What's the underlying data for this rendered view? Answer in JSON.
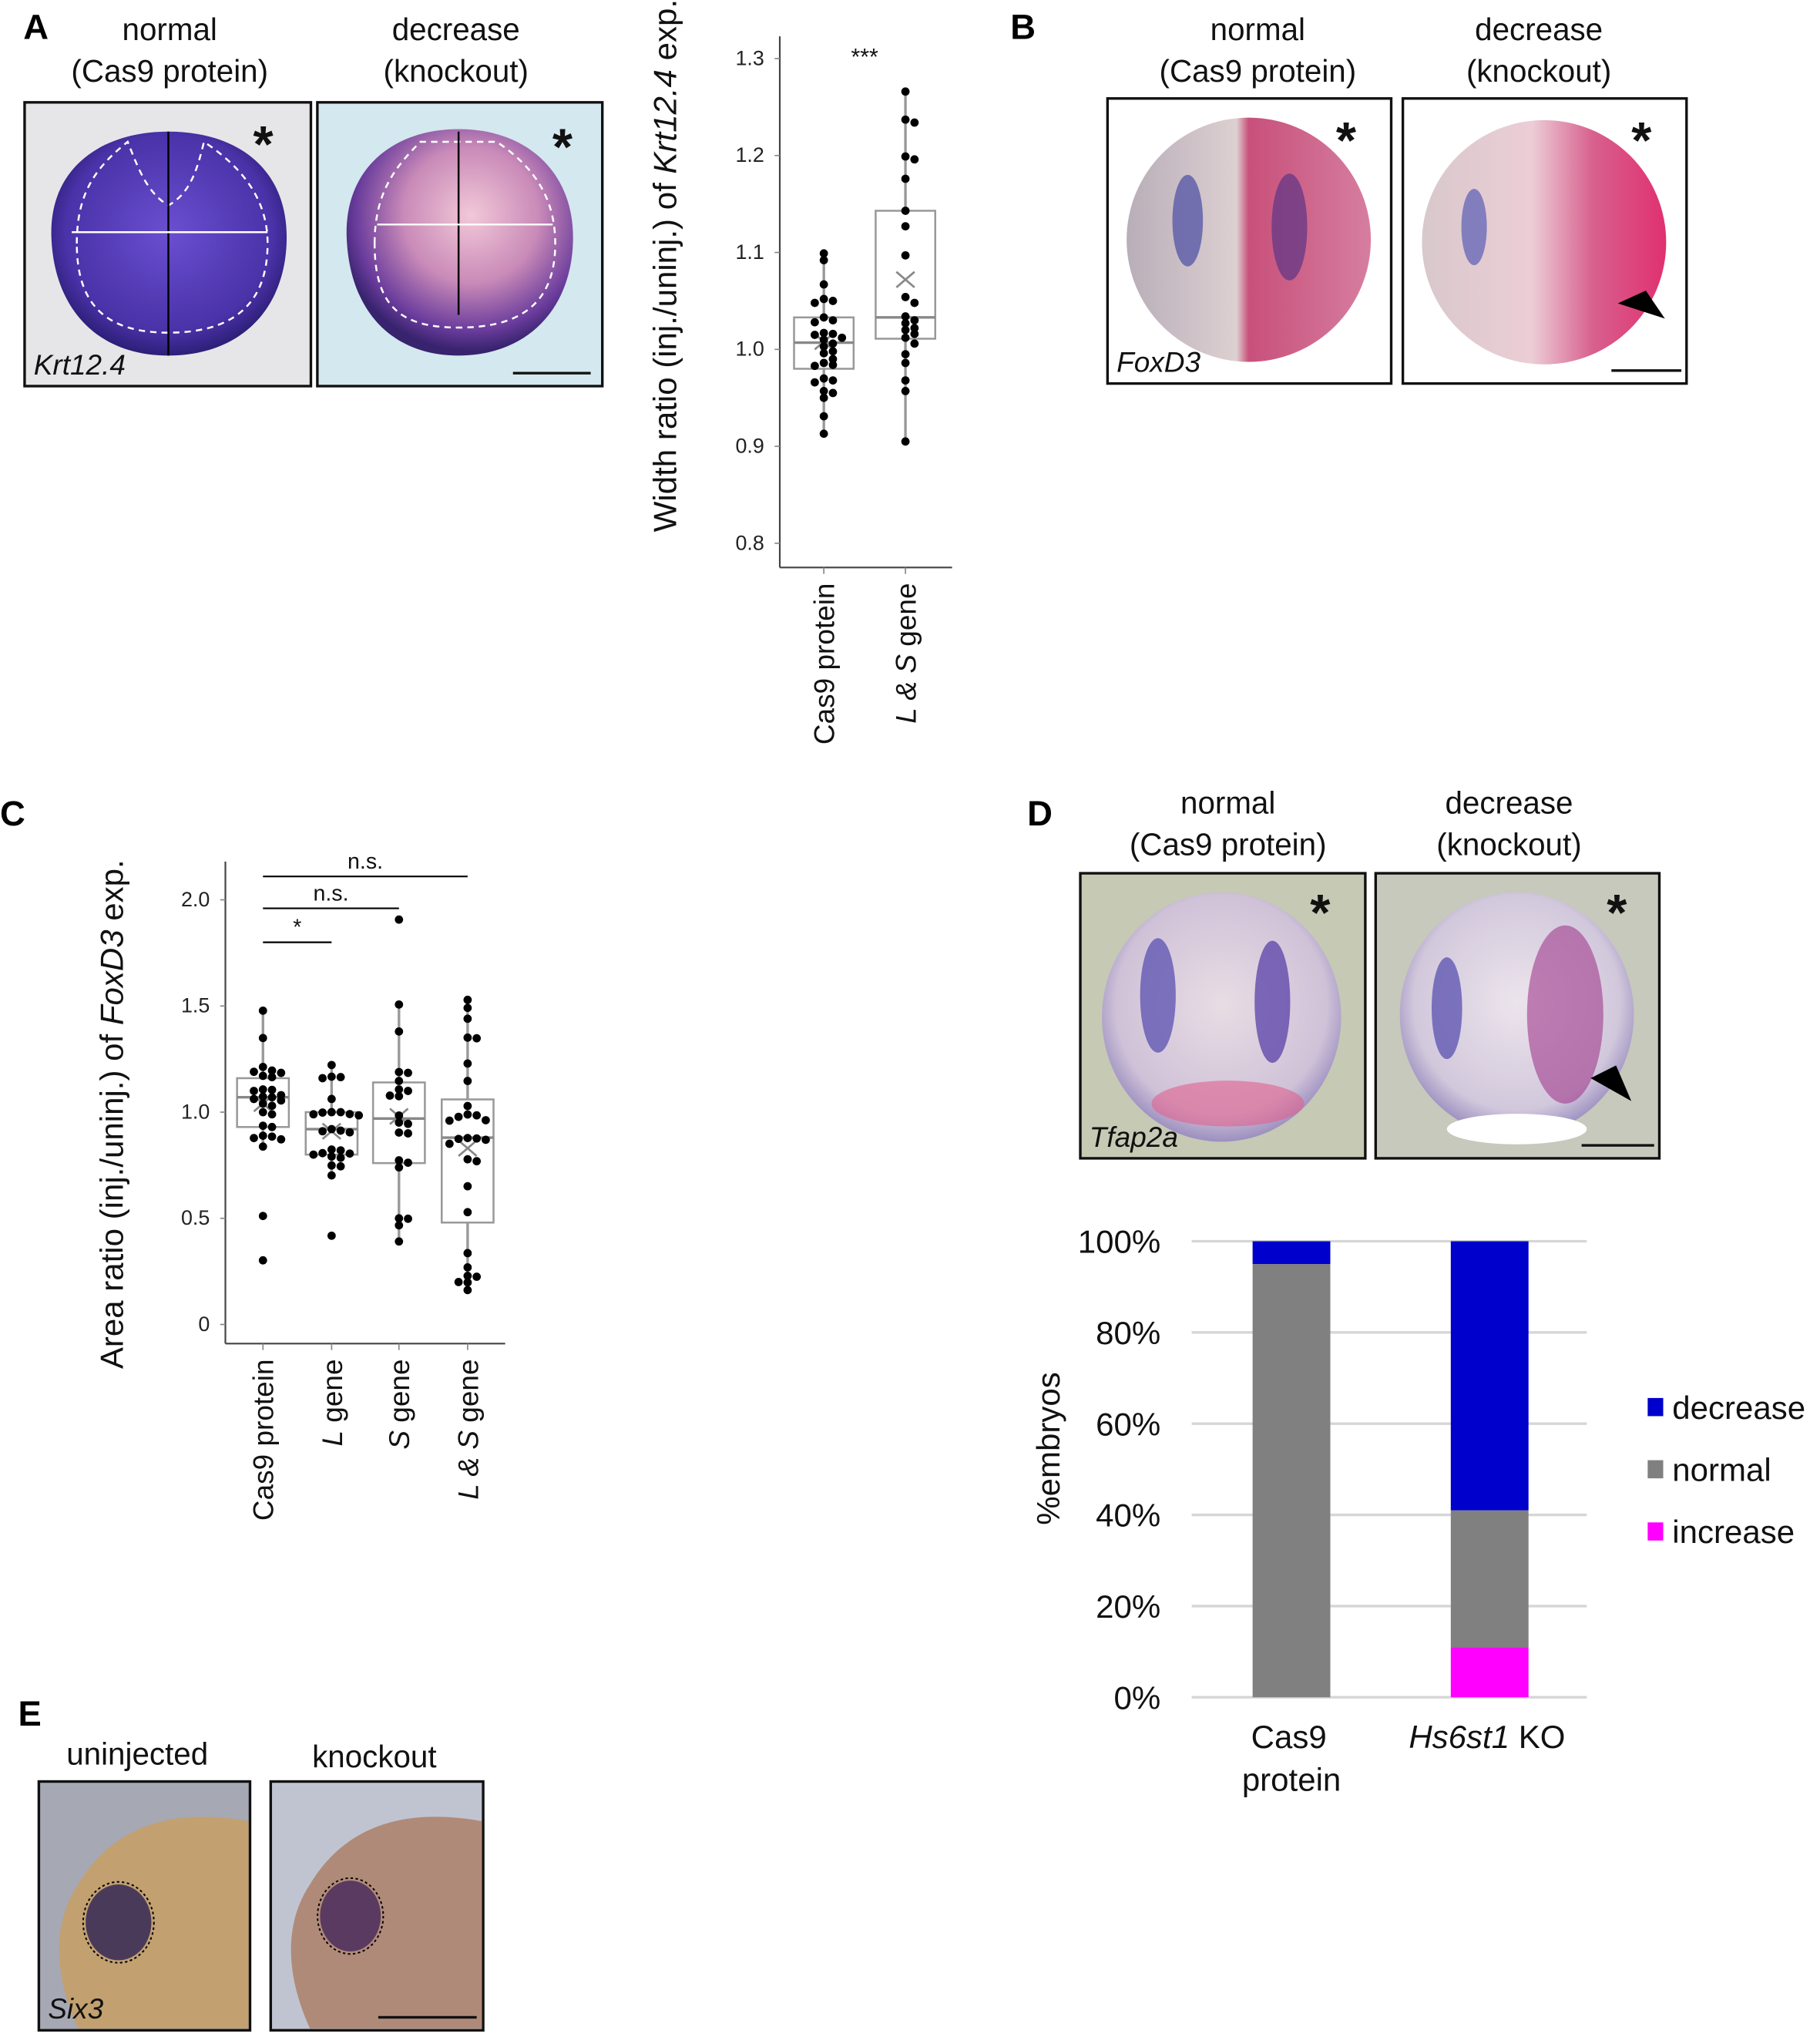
{
  "panels": {
    "A": {
      "letter": "A",
      "left_header": [
        "normal",
        "(Cas9 protein)"
      ],
      "right_header": [
        "decrease",
        "(knockout)"
      ],
      "gene": "Krt12.4"
    },
    "B": {
      "letter": "B",
      "left_header": [
        "normal",
        "(Cas9 protein)"
      ],
      "right_header": [
        "decrease",
        "(knockout)"
      ],
      "gene": "FoxD3"
    },
    "C": {
      "letter": "C"
    },
    "D": {
      "letter": "D",
      "left_header": [
        "normal",
        "(Cas9 protein)"
      ],
      "right_header": [
        "decrease",
        "(knockout)"
      ],
      "gene": "Tfap2a"
    },
    "E": {
      "letter": "E",
      "left_header": "uninjected",
      "right_header": "knockout",
      "gene": "Six3"
    }
  },
  "photo_symbols": {
    "asterisk": "*"
  },
  "chart_data": [
    {
      "id": "A",
      "type": "box",
      "ylabel": {
        "prefix": "Width ratio (inj./uninj.) of ",
        "gene": "Krt12.4",
        "suffix": " exp."
      },
      "ylim": [
        0.775,
        1.323
      ],
      "yticks": [
        "0.8",
        "0.9",
        "1.0",
        "1.1",
        "1.2",
        "1.3"
      ],
      "categories": [
        {
          "italic": "",
          "rest": "Cas9 protein"
        },
        {
          "italic": "L & S",
          "rest": " gene"
        }
      ],
      "boxes": [
        {
          "q1": 0.98,
          "median": 1.007,
          "q3": 1.033,
          "whisker_low": 0.913,
          "whisker_high": 1.099,
          "mean": 1.008,
          "points": [
            1.099,
            1.092,
            1.067,
            1.052,
            1.05,
            1.048,
            1.033,
            1.03,
            1.028,
            1.017,
            1.016,
            1.015,
            1.012,
            1.01,
            1.006,
            1.003,
            0.998,
            0.996,
            0.99,
            0.986,
            0.984,
            0.983,
            0.97,
            0.968,
            0.966,
            0.957,
            0.955,
            0.95,
            0.931,
            0.913
          ]
        },
        {
          "q1": 1.011,
          "median": 1.033,
          "q3": 1.143,
          "whisker_low": 0.905,
          "whisker_high": 1.266,
          "mean": 1.072,
          "points": [
            1.266,
            1.237,
            1.234,
            1.199,
            1.196,
            1.176,
            1.143,
            1.127,
            1.097,
            1.054,
            1.048,
            1.034,
            1.03,
            1.027,
            1.022,
            1.02,
            1.016,
            1.012,
            1.006,
            0.995,
            0.986,
            0.968,
            0.957,
            0.905
          ]
        }
      ],
      "significance": [
        {
          "from": 0,
          "to": 1,
          "label": "***",
          "bar": false
        }
      ],
      "grid": false
    },
    {
      "id": "C",
      "type": "box",
      "ylabel": {
        "prefix": "Area ratio (inj./uninj.) of ",
        "gene": "FoxD3",
        "suffix": " exp."
      },
      "ylim": [
        -0.09,
        2.18
      ],
      "yticks": [
        "0",
        "0.5",
        "1.0",
        "1.5",
        "2.0"
      ],
      "categories": [
        {
          "italic": "",
          "rest": "Cas9 protein"
        },
        {
          "italic": "L",
          "rest": " gene"
        },
        {
          "italic": "S",
          "rest": " gene"
        },
        {
          "italic": "L & S",
          "rest": " gene"
        }
      ],
      "boxes": [
        {
          "q1": 0.93,
          "median": 1.07,
          "q3": 1.16,
          "whisker_low": 0.84,
          "whisker_high": 1.48,
          "mean": 1.04,
          "points": [
            1.478,
            1.349,
            1.213,
            1.196,
            1.19,
            1.185,
            1.171,
            1.165,
            1.107,
            1.105,
            1.1,
            1.08,
            1.073,
            1.07,
            1.062,
            1.055,
            1.04,
            1.03,
            1.0,
            0.99,
            0.936,
            0.93,
            0.889,
            0.885,
            0.878,
            0.872,
            0.838,
            0.511,
            0.302
          ]
        },
        {
          "q1": 0.8,
          "median": 0.92,
          "q3": 1.0,
          "whisker_low": 0.7,
          "whisker_high": 1.22,
          "mean": 0.91,
          "points": [
            1.222,
            1.167,
            1.165,
            1.16,
            1.062,
            1.0,
            1.0,
            0.998,
            0.991,
            0.99,
            0.985,
            0.92,
            0.913,
            0.91,
            0.905,
            0.824,
            0.82,
            0.807,
            0.805,
            0.8,
            0.791,
            0.785,
            0.749,
            0.745,
            0.702,
            0.418
          ]
        },
        {
          "q1": 0.76,
          "median": 0.97,
          "q3": 1.14,
          "whisker_low": 0.39,
          "whisker_high": 1.51,
          "mean": 0.98,
          "points": [
            1.907,
            1.507,
            1.38,
            1.189,
            1.185,
            1.147,
            1.107,
            1.1,
            1.078,
            1.075,
            0.984,
            0.951,
            0.945,
            0.904,
            0.9,
            0.773,
            0.762,
            0.74,
            0.5,
            0.498,
            0.467,
            0.391
          ]
        },
        {
          "q1": 0.48,
          "median": 0.88,
          "q3": 1.06,
          "whisker_low": 0.16,
          "whisker_high": 1.53,
          "mean": 0.83,
          "points": [
            1.529,
            1.491,
            1.44,
            1.351,
            1.348,
            1.229,
            1.147,
            1.029,
            0.989,
            0.985,
            0.978,
            0.962,
            0.96,
            0.878,
            0.876,
            0.874,
            0.87,
            0.851,
            0.778,
            0.769,
            0.651,
            0.529,
            0.336,
            0.269,
            0.229,
            0.225,
            0.2,
            0.198,
            0.162
          ]
        }
      ],
      "significance": [
        {
          "from": 0,
          "to": 1,
          "label": "*",
          "y": 1.8,
          "bar": true
        },
        {
          "from": 0,
          "to": 2,
          "label": "n.s.",
          "y": 1.96,
          "bar": true
        },
        {
          "from": 0,
          "to": 3,
          "label": "n.s.",
          "y": 2.11,
          "bar": true
        }
      ],
      "grid": false
    },
    {
      "id": "D",
      "type": "stacked-bar",
      "ylabel": "%embryos",
      "ylim": [
        0,
        100
      ],
      "yticks": [
        "0%",
        "20%",
        "40%",
        "60%",
        "80%",
        "100%"
      ],
      "categories": [
        {
          "lines": [
            "Cas9",
            "protein"
          ],
          "italic": ""
        },
        {
          "lines": [
            " KO"
          ],
          "italic": "Hs6st1"
        }
      ],
      "series": [
        {
          "name": "increase",
          "color": "#ff00ff",
          "values": [
            0,
            11
          ]
        },
        {
          "name": "normal",
          "color": "#808080",
          "values": [
            95,
            30
          ]
        },
        {
          "name": "decrease",
          "color": "#0000cc",
          "values": [
            5,
            59
          ]
        }
      ],
      "legend_order": [
        "decrease",
        "normal",
        "increase"
      ],
      "legend_position": "right",
      "grid": true
    }
  ]
}
